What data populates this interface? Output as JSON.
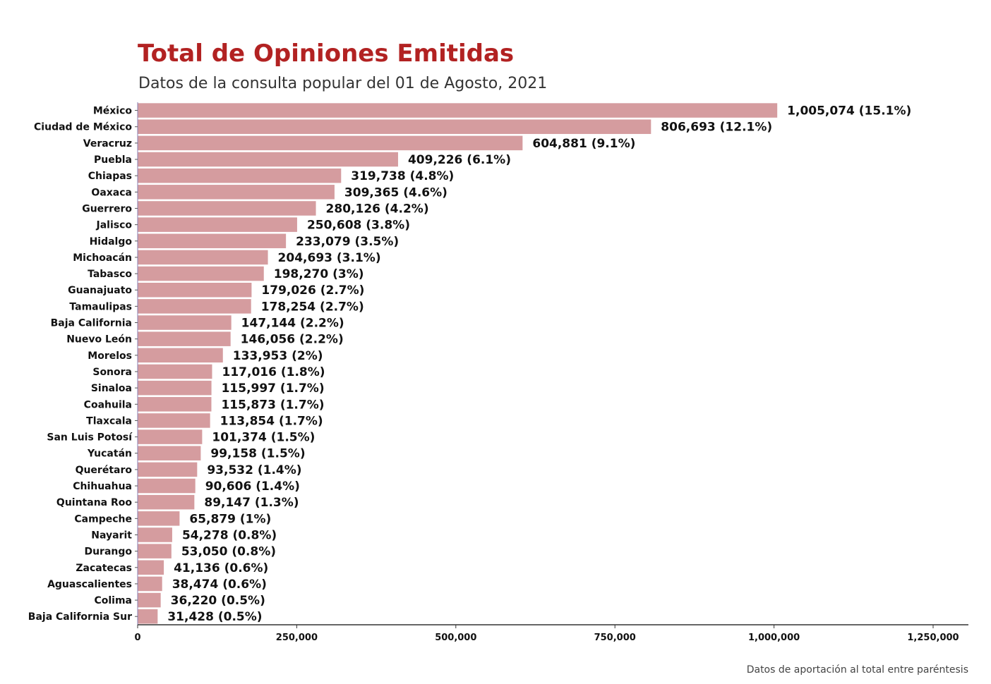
{
  "chart_data": {
    "type": "bar",
    "orientation": "horizontal",
    "title": "Total de Opiniones Emitidas",
    "subtitle": "Datos de la consulta popular del 01 de Agosto, 2021",
    "caption": "Datos de aportación al total entre paréntesis",
    "xlim": [
      0,
      1250000
    ],
    "x_ticks": [
      "0",
      "250,000",
      "500,000",
      "750,000",
      "1,000,000",
      "1,250,000"
    ],
    "x_tick_values": [
      0,
      250000,
      500000,
      750000,
      1000000,
      1250000
    ],
    "grid": false,
    "bar_color": "#d59c9f",
    "categories": [
      "México",
      "Ciudad de México",
      "Veracruz",
      "Puebla",
      "Chiapas",
      "Oaxaca",
      "Guerrero",
      "Jalisco",
      "Hidalgo",
      "Michoacán",
      "Tabasco",
      "Guanajuato",
      "Tamaulipas",
      "Baja California",
      "Nuevo León",
      "Morelos",
      "Sonora",
      "Sinaloa",
      "Coahuila",
      "Tlaxcala",
      "San Luis Potosí",
      "Yucatán",
      "Querétaro",
      "Chihuahua",
      "Quintana Roo",
      "Campeche",
      "Nayarit",
      "Durango",
      "Zacatecas",
      "Aguascalientes",
      "Colima",
      "Baja California Sur"
    ],
    "values": [
      1005074,
      806693,
      604881,
      409226,
      319738,
      309365,
      280126,
      250608,
      233079,
      204693,
      198270,
      179026,
      178254,
      147144,
      146056,
      133953,
      117016,
      115997,
      115873,
      113854,
      101374,
      99158,
      93532,
      90606,
      89147,
      65879,
      54278,
      53050,
      41136,
      38474,
      36220,
      31428
    ],
    "data_labels": [
      "1,005,074 (15.1%)",
      "806,693 (12.1%)",
      "604,881 (9.1%)",
      "409,226 (6.1%)",
      "319,738 (4.8%)",
      "309,365 (4.6%)",
      "280,126 (4.2%)",
      "250,608 (3.8%)",
      "233,079 (3.5%)",
      "204,693 (3.1%)",
      "198,270 (3%)",
      "179,026 (2.7%)",
      "178,254 (2.7%)",
      "147,144 (2.2%)",
      "146,056 (2.2%)",
      "133,953 (2%)",
      "117,016 (1.8%)",
      "115,997 (1.7%)",
      "115,873 (1.7%)",
      "113,854 (1.7%)",
      "101,374 (1.5%)",
      "99,158 (1.5%)",
      "93,532 (1.4%)",
      "90,606 (1.4%)",
      "89,147 (1.3%)",
      "65,879 (1%)",
      "54,278 (0.8%)",
      "53,050 (0.8%)",
      "41,136 (0.6%)",
      "38,474 (0.6%)",
      "36,220 (0.5%)",
      "31,428 (0.5%)"
    ]
  }
}
